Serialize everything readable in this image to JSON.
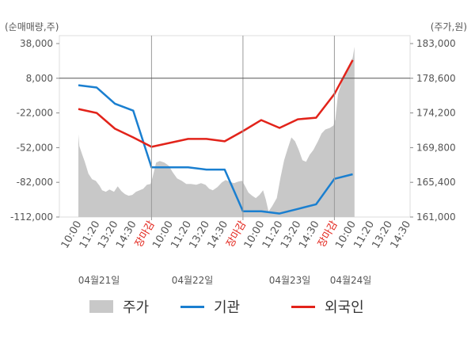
{
  "chart_data": {
    "type": "line",
    "left_axis_unit": "(순매매량,주)",
    "right_axis_unit": "(주가,원)",
    "left_ticks": [
      "38,000",
      "8,000",
      "-22,000",
      "-52,000",
      "-82,000",
      "-112,000"
    ],
    "right_ticks": [
      "183,000",
      "178,600",
      "174,200",
      "169,800",
      "165,400",
      "161,000"
    ],
    "ylim_left": [
      -112000,
      38000
    ],
    "ylim_right": [
      161000,
      183000
    ],
    "reference_line_left": 8000,
    "x_labels": [
      "10:00",
      "11:20",
      "13:20",
      "14:30",
      "장마감",
      "10:00",
      "11:20",
      "13:20",
      "14:30",
      "장마감",
      "10:00",
      "11:20",
      "13:20",
      "14:30",
      "장마감",
      "10:00",
      "11:20",
      "13:20",
      "14:30"
    ],
    "close_label": "장마감",
    "dates": [
      "04월21일",
      "04월22일",
      "04월23일",
      "04월24일"
    ],
    "legend": [
      {
        "label": "주가",
        "color": "#c8c8c8"
      },
      {
        "label": "기관",
        "color": "#1a7fd0"
      },
      {
        "label": "외국인",
        "color": "#e2231a"
      }
    ],
    "series": [
      {
        "name": "기관",
        "axis": "left",
        "color": "#1a7fd0",
        "points": [
          [
            0,
            2000
          ],
          [
            1,
            0
          ],
          [
            2,
            -14000
          ],
          [
            3,
            -20000
          ],
          [
            4,
            -69000
          ],
          [
            5,
            -69000
          ],
          [
            6,
            -69000
          ],
          [
            7,
            -71000
          ],
          [
            8,
            -71000
          ],
          [
            9,
            -107000
          ],
          [
            10,
            -107000
          ],
          [
            11,
            -109000
          ],
          [
            12,
            -105000
          ],
          [
            13,
            -101000
          ],
          [
            14,
            -79000
          ],
          [
            15,
            -75000
          ]
        ]
      },
      {
        "name": "외국인",
        "axis": "right",
        "color": "#e2231a",
        "points": [
          [
            0,
            174700
          ],
          [
            1,
            174200
          ],
          [
            2,
            172200
          ],
          [
            3,
            171100
          ],
          [
            4,
            169900
          ],
          [
            5,
            170400
          ],
          [
            6,
            170900
          ],
          [
            7,
            170900
          ],
          [
            8,
            170600
          ],
          [
            9,
            171900
          ],
          [
            10,
            173300
          ],
          [
            11,
            172300
          ],
          [
            12,
            173400
          ],
          [
            13,
            173600
          ],
          [
            14,
            176600
          ],
          [
            15,
            180900
          ]
        ]
      },
      {
        "name": "주가",
        "axis": "right",
        "color": "#c8c8c8",
        "points": [
          [
            0,
            171500
          ],
          [
            0.05,
            170000
          ],
          [
            0.2,
            169000
          ],
          [
            0.35,
            168000
          ],
          [
            0.55,
            166500
          ],
          [
            0.75,
            165800
          ],
          [
            0.95,
            165600
          ],
          [
            1.15,
            165000
          ],
          [
            1.3,
            164400
          ],
          [
            1.5,
            164200
          ],
          [
            1.7,
            164500
          ],
          [
            1.95,
            164200
          ],
          [
            2.15,
            164900
          ],
          [
            2.35,
            164300
          ],
          [
            2.55,
            163900
          ],
          [
            2.75,
            163700
          ],
          [
            2.95,
            163800
          ],
          [
            3.15,
            164200
          ],
          [
            3.35,
            164400
          ],
          [
            3.55,
            164600
          ],
          [
            3.75,
            165100
          ],
          [
            3.95,
            165200
          ],
          [
            4.05,
            166000
          ],
          [
            4.25,
            167900
          ],
          [
            4.45,
            168100
          ],
          [
            4.7,
            167900
          ],
          [
            4.95,
            167500
          ],
          [
            5.15,
            166700
          ],
          [
            5.4,
            165900
          ],
          [
            5.65,
            165600
          ],
          [
            5.9,
            165200
          ],
          [
            6.15,
            165200
          ],
          [
            6.45,
            165100
          ],
          [
            6.7,
            165300
          ],
          [
            6.95,
            165100
          ],
          [
            7.15,
            164600
          ],
          [
            7.35,
            164400
          ],
          [
            7.6,
            164800
          ],
          [
            7.85,
            165400
          ],
          [
            8.05,
            165700
          ],
          [
            8.25,
            165500
          ],
          [
            8.5,
            165300
          ],
          [
            8.75,
            165500
          ],
          [
            8.95,
            165600
          ],
          [
            9.1,
            165000
          ],
          [
            9.3,
            164100
          ],
          [
            9.5,
            163700
          ],
          [
            9.7,
            163400
          ],
          [
            9.9,
            163800
          ],
          [
            10.1,
            164400
          ],
          [
            10.25,
            163200
          ],
          [
            10.4,
            161700
          ],
          [
            10.6,
            162400
          ],
          [
            10.85,
            163400
          ],
          [
            11.05,
            166000
          ],
          [
            11.25,
            168200
          ],
          [
            11.45,
            169700
          ],
          [
            11.65,
            171100
          ],
          [
            11.85,
            170600
          ],
          [
            12.05,
            169500
          ],
          [
            12.25,
            168200
          ],
          [
            12.45,
            168000
          ],
          [
            12.65,
            168900
          ],
          [
            12.85,
            169500
          ],
          [
            13.1,
            170600
          ],
          [
            13.3,
            171600
          ],
          [
            13.5,
            172100
          ],
          [
            13.75,
            172300
          ],
          [
            13.95,
            172600
          ],
          [
            14.05,
            173400
          ],
          [
            14.2,
            176600
          ],
          [
            14.4,
            178100
          ],
          [
            14.6,
            179300
          ],
          [
            14.8,
            180100
          ],
          [
            15.0,
            181200
          ],
          [
            15.1,
            182600
          ]
        ]
      }
    ],
    "grid": false
  }
}
